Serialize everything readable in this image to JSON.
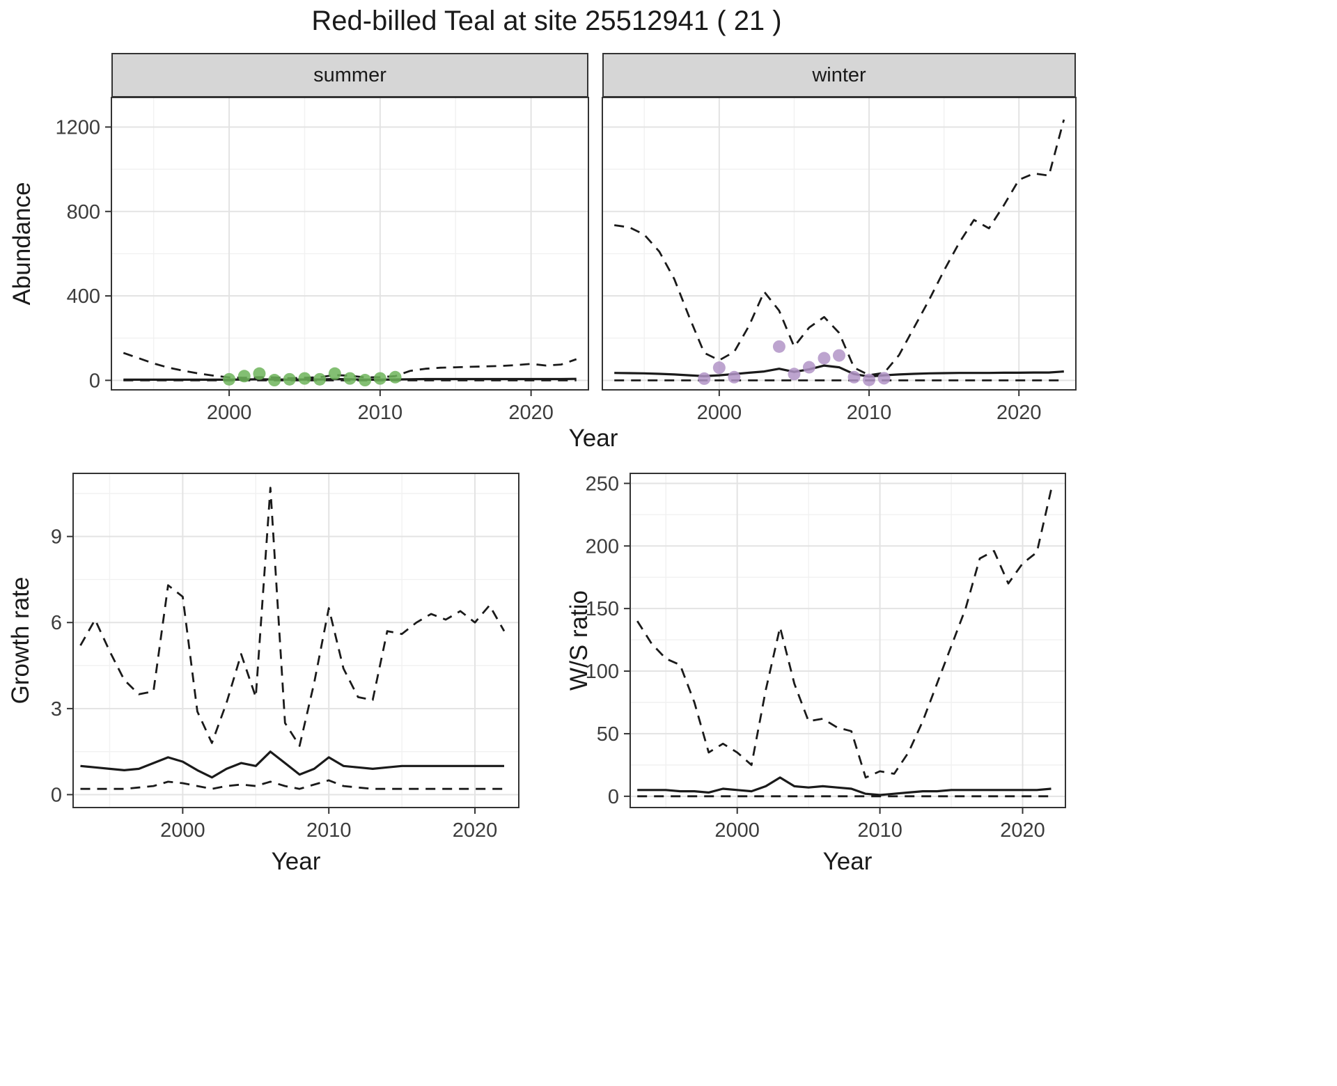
{
  "title": "Red-billed Teal at site 25512941 ( 21 )",
  "axes": {
    "abundance": "Abundance",
    "year": "Year",
    "growth_rate": "Growth rate",
    "ws_ratio": "W/S ratio"
  },
  "facets": [
    {
      "label": "summer"
    },
    {
      "label": "winter"
    }
  ],
  "colors": {
    "line": "#1a1a1a",
    "summer_points": "#6db45a",
    "winter_points": "#b294c7",
    "grid_major": "#e3e3e3",
    "grid_minor": "#f1f1f1",
    "panel_border": "#333333",
    "panel_background": "#ffffff",
    "strip_background": "#d6d6d6"
  },
  "chart_data": [
    {
      "name": "abundance-summer",
      "type": "line",
      "facet": "summer",
      "xlabel": "Year",
      "ylabel": "Abundance",
      "xlim": [
        1992.2,
        2023.8
      ],
      "ylim": [
        -45,
        1340
      ],
      "xticks": [
        2000,
        2010,
        2020
      ],
      "yticks": [
        0,
        400,
        800,
        1200
      ],
      "show_y_labels": true,
      "series": [
        {
          "name": "upper-credible",
          "style": "dashed",
          "x": [
            1993,
            1994,
            1995,
            1996,
            1997,
            1998,
            1999,
            2000,
            2001,
            2002,
            2003,
            2004,
            2005,
            2006,
            2007,
            2008,
            2009,
            2010,
            2011,
            2012,
            2013,
            2014,
            2015,
            2016,
            2017,
            2018,
            2019,
            2020,
            2021,
            2022,
            2023
          ],
          "y": [
            130,
            105,
            80,
            60,
            45,
            32,
            22,
            14,
            12,
            15,
            14,
            10,
            12,
            15,
            25,
            22,
            14,
            15,
            20,
            45,
            55,
            60,
            62,
            64,
            66,
            68,
            72,
            78,
            70,
            75,
            100
          ]
        },
        {
          "name": "median",
          "style": "solid",
          "x": [
            1993,
            1994,
            1995,
            1996,
            1997,
            1998,
            1999,
            2000,
            2001,
            2002,
            2003,
            2004,
            2005,
            2006,
            2007,
            2008,
            2009,
            2010,
            2011,
            2012,
            2013,
            2014,
            2015,
            2016,
            2017,
            2018,
            2019,
            2020,
            2021,
            2022,
            2023
          ],
          "y": [
            3,
            3,
            3,
            3,
            3,
            3,
            3,
            3,
            4,
            5,
            4,
            3,
            4,
            4,
            6,
            5,
            3,
            3,
            4,
            5,
            6,
            6,
            6,
            6,
            6,
            6,
            6,
            6,
            6,
            6,
            7
          ]
        },
        {
          "name": "lower-credible",
          "style": "dashed",
          "x": [
            1993,
            1994,
            1995,
            1996,
            1997,
            1998,
            1999,
            2000,
            2001,
            2002,
            2003,
            2004,
            2005,
            2006,
            2007,
            2008,
            2009,
            2010,
            2011,
            2012,
            2013,
            2014,
            2015,
            2016,
            2017,
            2018,
            2019,
            2020,
            2021,
            2022,
            2023
          ],
          "y": [
            0,
            0,
            0,
            0,
            0,
            0,
            0,
            0,
            0,
            0,
            0,
            0,
            0,
            0,
            0,
            0,
            0,
            0,
            0,
            0,
            0,
            0,
            0,
            0,
            0,
            0,
            0,
            0,
            0,
            0,
            0
          ]
        },
        {
          "name": "observed-counts",
          "style": "points",
          "color": "#6db45a",
          "x": [
            2000,
            2001,
            2002,
            2003,
            2004,
            2005,
            2006,
            2007,
            2008,
            2009,
            2010,
            2011
          ],
          "y": [
            5,
            20,
            32,
            1,
            5,
            9,
            5,
            32,
            9,
            1,
            9,
            15
          ]
        }
      ]
    },
    {
      "name": "abundance-winter",
      "type": "line",
      "facet": "winter",
      "xlabel": "Year",
      "ylabel": "Abundance",
      "xlim": [
        1992.2,
        2023.8
      ],
      "ylim": [
        -45,
        1340
      ],
      "xticks": [
        2000,
        2010,
        2020
      ],
      "yticks": [
        0,
        400,
        800,
        1200
      ],
      "show_y_labels": false,
      "series": [
        {
          "name": "upper-credible",
          "style": "dashed",
          "x": [
            1993,
            1994,
            1995,
            1996,
            1997,
            1998,
            1999,
            2000,
            2001,
            2002,
            2003,
            2004,
            2005,
            2006,
            2007,
            2008,
            2009,
            2010,
            2011,
            2012,
            2013,
            2014,
            2015,
            2016,
            2017,
            2018,
            2019,
            2020,
            2021,
            2022,
            2023
          ],
          "y": [
            735,
            725,
            690,
            610,
            480,
            300,
            130,
            95,
            135,
            260,
            420,
            330,
            160,
            250,
            300,
            225,
            60,
            25,
            35,
            120,
            250,
            380,
            520,
            650,
            760,
            720,
            830,
            950,
            980,
            970,
            1235
          ]
        },
        {
          "name": "median",
          "style": "solid",
          "x": [
            1993,
            1994,
            1995,
            1996,
            1997,
            1998,
            1999,
            2000,
            2001,
            2002,
            2003,
            2004,
            2005,
            2006,
            2007,
            2008,
            2009,
            2010,
            2011,
            2012,
            2013,
            2014,
            2015,
            2016,
            2017,
            2018,
            2019,
            2020,
            2021,
            2022,
            2023
          ],
          "y": [
            35,
            34,
            33,
            31,
            28,
            24,
            20,
            24,
            30,
            36,
            42,
            55,
            40,
            52,
            70,
            62,
            30,
            18,
            24,
            28,
            31,
            33,
            34,
            35,
            35,
            35,
            36,
            36,
            37,
            37,
            42
          ]
        },
        {
          "name": "lower-credible",
          "style": "dashed",
          "x": [
            1993,
            1994,
            1995,
            1996,
            1997,
            1998,
            1999,
            2000,
            2001,
            2002,
            2003,
            2004,
            2005,
            2006,
            2007,
            2008,
            2009,
            2010,
            2011,
            2012,
            2013,
            2014,
            2015,
            2016,
            2017,
            2018,
            2019,
            2020,
            2021,
            2022,
            2023
          ],
          "y": [
            0,
            0,
            0,
            0,
            0,
            0,
            0,
            0,
            0,
            0,
            0,
            0,
            0,
            0,
            0,
            0,
            0,
            0,
            0,
            0,
            0,
            0,
            0,
            0,
            0,
            0,
            0,
            0,
            0,
            0,
            0
          ]
        },
        {
          "name": "observed-counts",
          "style": "points",
          "color": "#b294c7",
          "x": [
            1999,
            2000,
            2001,
            2004,
            2005,
            2006,
            2007,
            2008,
            2009,
            2010,
            2011
          ],
          "y": [
            8,
            60,
            15,
            160,
            30,
            62,
            105,
            118,
            15,
            2,
            10
          ]
        }
      ]
    },
    {
      "name": "growth-rate",
      "type": "line",
      "facet": null,
      "xlabel": "Year",
      "ylabel": "Growth rate",
      "xlim": [
        1992.5,
        2023.0
      ],
      "ylim": [
        -0.45,
        11.2
      ],
      "xticks": [
        2000,
        2010,
        2020
      ],
      "yticks": [
        0,
        3,
        6,
        9
      ],
      "show_y_labels": true,
      "series": [
        {
          "name": "upper-credible",
          "style": "dashed",
          "x": [
            1993,
            1994,
            1995,
            1996,
            1997,
            1998,
            1999,
            2000,
            2001,
            2002,
            2003,
            2004,
            2005,
            2006,
            2007,
            2008,
            2009,
            2010,
            2011,
            2012,
            2013,
            2014,
            2015,
            2016,
            2017,
            2018,
            2019,
            2020,
            2021,
            2022
          ],
          "y": [
            5.2,
            6.1,
            5.0,
            4.0,
            3.5,
            3.6,
            7.3,
            6.9,
            2.9,
            1.8,
            3.2,
            4.9,
            3.4,
            10.7,
            2.5,
            1.7,
            3.9,
            6.5,
            4.4,
            3.4,
            3.3,
            5.7,
            5.6,
            6.0,
            6.3,
            6.1,
            6.4,
            6.0,
            6.6,
            5.7
          ]
        },
        {
          "name": "median",
          "style": "solid",
          "x": [
            1993,
            1994,
            1995,
            1996,
            1997,
            1998,
            1999,
            2000,
            2001,
            2002,
            2003,
            2004,
            2005,
            2006,
            2007,
            2008,
            2009,
            2010,
            2011,
            2012,
            2013,
            2014,
            2015,
            2016,
            2017,
            2018,
            2019,
            2020,
            2021,
            2022
          ],
          "y": [
            1.0,
            0.95,
            0.9,
            0.85,
            0.9,
            1.1,
            1.3,
            1.15,
            0.85,
            0.6,
            0.9,
            1.1,
            1.0,
            1.5,
            1.1,
            0.7,
            0.9,
            1.3,
            1.0,
            0.95,
            0.9,
            0.95,
            1.0,
            1.0,
            1.0,
            1.0,
            1.0,
            1.0,
            1.0,
            1.0
          ]
        },
        {
          "name": "lower-credible",
          "style": "dashed",
          "x": [
            1993,
            1994,
            1995,
            1996,
            1997,
            1998,
            1999,
            2000,
            2001,
            2002,
            2003,
            2004,
            2005,
            2006,
            2007,
            2008,
            2009,
            2010,
            2011,
            2012,
            2013,
            2014,
            2015,
            2016,
            2017,
            2018,
            2019,
            2020,
            2021,
            2022
          ],
          "y": [
            0.2,
            0.2,
            0.2,
            0.2,
            0.25,
            0.3,
            0.45,
            0.4,
            0.3,
            0.2,
            0.3,
            0.35,
            0.3,
            0.45,
            0.3,
            0.2,
            0.35,
            0.5,
            0.3,
            0.25,
            0.2,
            0.2,
            0.2,
            0.2,
            0.2,
            0.2,
            0.2,
            0.2,
            0.2,
            0.2
          ]
        }
      ]
    },
    {
      "name": "ws-ratio",
      "type": "line",
      "facet": null,
      "xlabel": "Year",
      "ylabel": "W/S ratio",
      "xlim": [
        1992.5,
        2023.0
      ],
      "ylim": [
        -9,
        258
      ],
      "xticks": [
        2000,
        2010,
        2020
      ],
      "yticks": [
        0,
        50,
        100,
        150,
        200,
        250
      ],
      "show_y_labels": true,
      "series": [
        {
          "name": "upper-credible",
          "style": "dashed",
          "x": [
            1993,
            1994,
            1995,
            1996,
            1997,
            1998,
            1999,
            2000,
            2001,
            2002,
            2003,
            2004,
            2005,
            2006,
            2007,
            2008,
            2009,
            2010,
            2011,
            2012,
            2013,
            2014,
            2015,
            2016,
            2017,
            2018,
            2019,
            2020,
            2021,
            2022
          ],
          "y": [
            140,
            122,
            110,
            105,
            75,
            35,
            42,
            35,
            25,
            85,
            135,
            90,
            60,
            62,
            55,
            52,
            15,
            20,
            18,
            35,
            60,
            90,
            120,
            150,
            190,
            196,
            170,
            186,
            195,
            245
          ]
        },
        {
          "name": "median",
          "style": "solid",
          "x": [
            1993,
            1994,
            1995,
            1996,
            1997,
            1998,
            1999,
            2000,
            2001,
            2002,
            2003,
            2004,
            2005,
            2006,
            2007,
            2008,
            2009,
            2010,
            2011,
            2012,
            2013,
            2014,
            2015,
            2016,
            2017,
            2018,
            2019,
            2020,
            2021,
            2022
          ],
          "y": [
            5,
            5,
            5,
            4,
            4,
            3,
            6,
            5,
            4,
            8,
            15,
            8,
            7,
            8,
            7,
            6,
            2,
            1,
            2,
            3,
            4,
            4,
            5,
            5,
            5,
            5,
            5,
            5,
            5,
            6
          ]
        },
        {
          "name": "lower-credible",
          "style": "dashed",
          "x": [
            1993,
            1994,
            1995,
            1996,
            1997,
            1998,
            1999,
            2000,
            2001,
            2002,
            2003,
            2004,
            2005,
            2006,
            2007,
            2008,
            2009,
            2010,
            2011,
            2012,
            2013,
            2014,
            2015,
            2016,
            2017,
            2018,
            2019,
            2020,
            2021,
            2022
          ],
          "y": [
            0,
            0,
            0,
            0,
            0,
            0,
            0,
            0,
            0,
            0,
            0,
            0,
            0,
            0,
            0,
            0,
            0,
            0,
            0,
            0,
            0,
            0,
            0,
            0,
            0,
            0,
            0,
            0,
            0,
            0
          ]
        }
      ]
    }
  ]
}
